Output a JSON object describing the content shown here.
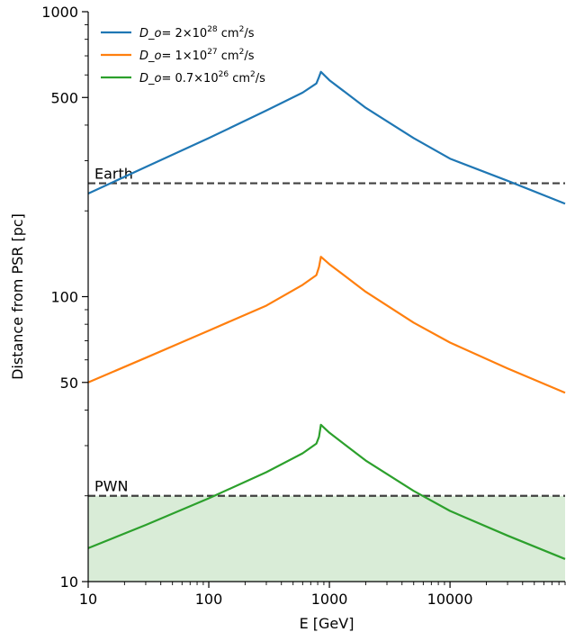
{
  "chart_data": {
    "type": "line",
    "title": "",
    "xlabel": "E [GeV]",
    "ylabel": "Distance from PSR [pc]",
    "xscale": "log",
    "yscale": "log",
    "xlim": [
      10,
      90000
    ],
    "ylim": [
      10,
      1000
    ],
    "xticks": [
      {
        "value": 10,
        "label": "10"
      },
      {
        "value": 100,
        "label": "100"
      },
      {
        "value": 1000,
        "label": "1000"
      },
      {
        "value": 10000,
        "label": "10000"
      }
    ],
    "yticks": [
      {
        "value": 10,
        "label": "10"
      },
      {
        "value": 50,
        "label": "50"
      },
      {
        "value": 100,
        "label": "100"
      },
      {
        "value": 500,
        "label": "500"
      },
      {
        "value": 1000,
        "label": "1000"
      }
    ],
    "grid": false,
    "legend_position": "top-left",
    "series": [
      {
        "name_math": "D_o",
        "name_coef": "= 2×10",
        "name_exp": "28",
        "name_units": " cm",
        "name_units_exp": "2",
        "name_tail": "/s",
        "color": "#1f77b4",
        "x": [
          10,
          30,
          100,
          300,
          600,
          780,
          820,
          850,
          1000,
          2000,
          5000,
          10000,
          30000,
          90000
        ],
        "y": [
          230,
          285,
          360,
          450,
          520,
          560,
          590,
          615,
          575,
          460,
          360,
          305,
          255,
          212
        ]
      },
      {
        "name_math": "D_o",
        "name_coef": "= 1×10",
        "name_exp": "27",
        "name_units": " cm",
        "name_units_exp": "2",
        "name_tail": "/s",
        "color": "#ff7f0e",
        "x": [
          10,
          30,
          100,
          300,
          600,
          780,
          820,
          850,
          1000,
          2000,
          5000,
          10000,
          30000,
          90000
        ],
        "y": [
          50,
          61,
          76,
          93,
          110,
          119,
          127,
          138,
          130,
          104,
          81,
          69,
          56,
          46
        ]
      },
      {
        "name_math": "D_o",
        "name_coef": "= 0.7×10",
        "name_exp": "26",
        "name_units": " cm",
        "name_units_exp": "2",
        "name_tail": "/s",
        "color": "#2ca02c",
        "x": [
          10,
          30,
          100,
          300,
          600,
          780,
          820,
          850,
          1000,
          2000,
          5000,
          10000,
          30000,
          90000
        ],
        "y": [
          13.1,
          15.8,
          19.6,
          24.2,
          28.2,
          30.5,
          32.2,
          35.5,
          33.3,
          26.6,
          20.8,
          17.7,
          14.5,
          12
        ]
      }
    ],
    "reference_lines": [
      {
        "label": "Earth",
        "y": 250,
        "style": "dashed",
        "color": "#404040"
      },
      {
        "label": "PWN",
        "y": 20,
        "style": "dashed",
        "color": "#404040"
      }
    ],
    "shaded_region": {
      "y_from": 10,
      "y_to": 20,
      "color": "#d9ecd7"
    }
  }
}
